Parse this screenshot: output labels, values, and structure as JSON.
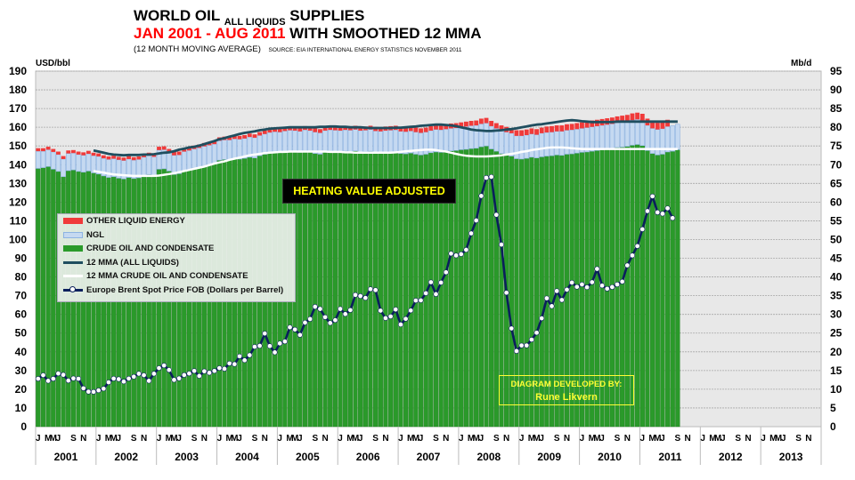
{
  "title": {
    "line1_main": "WORLD OIL",
    "line1_sub": "ALL LIQUIDS",
    "line1_end": "SUPPLIES",
    "line2_red": "JAN 2001 - AUG 2011",
    "line2_black": "WITH SMOOTHED 12 MMA",
    "line3": "(12 MONTH MOVING AVERAGE)",
    "line3_source": "SOURCE: EIA INTERNATIONAL ENERGY STATISTICS NOVEMBER 2011"
  },
  "annotations": {
    "heating": "HEATING VALUE ADJUSTED",
    "credit_line1": "DIAGRAM DEVELOPED BY:",
    "credit_line2": "Rune Likvern"
  },
  "colors": {
    "other_liquids": "#f03a3a",
    "ngl": "#c5d9f1",
    "ngl_border": "#8db3e2",
    "crude": "#2a9a2a",
    "mma_all": "#1f4e5f",
    "mma_crude": "#ffffff",
    "brent_line": "#0a1f5c",
    "plot_bg": "#e8e8e8"
  },
  "chart_data": {
    "type": "bar",
    "title": "WORLD OIL ALL LIQUIDS SUPPLIES JAN 2001 - AUG 2011 WITH SMOOTHED 12 MMA",
    "ylabel_left": "USD/bbl",
    "ylabel_right": "Mb/d",
    "ylim_left": [
      0,
      190
    ],
    "ylim_right": [
      0,
      95
    ],
    "yticks_left": [
      0,
      10,
      20,
      30,
      40,
      50,
      60,
      70,
      80,
      90,
      100,
      110,
      120,
      130,
      140,
      150,
      160,
      170,
      180,
      190
    ],
    "yticks_right": [
      0,
      5,
      10,
      15,
      20,
      25,
      30,
      35,
      40,
      45,
      50,
      55,
      60,
      65,
      70,
      75,
      80,
      85,
      90,
      95
    ],
    "grid": true,
    "legend_position": "middle-left",
    "x_years": [
      "2001",
      "2002",
      "2003",
      "2004",
      "2005",
      "2006",
      "2007",
      "2008",
      "2009",
      "2010",
      "2011",
      "2012",
      "2013"
    ],
    "x_month_labels": [
      "J",
      "",
      "M",
      "M",
      "J",
      "",
      "",
      "S",
      "",
      "N",
      "",
      ""
    ],
    "x_start": "2001-01",
    "x_end_axis": "2013-12",
    "legend": [
      "OTHER LIQUID ENERGY",
      "NGL",
      "CRUDE OIL AND CONDENSATE",
      "12 MMA (ALL LIQUIDS)",
      "12 MMA CRUDE OIL AND CONDENSATE",
      "Europe Brent Spot Price FOB (Dollars per Barrel)"
    ],
    "series": [
      {
        "name": "CRUDE OIL AND CONDENSATE",
        "axis": "right",
        "type": "stacked-bar",
        "values": [
          69.0,
          69.2,
          69.5,
          68.8,
          68.2,
          66.8,
          68.4,
          68.6,
          68.2,
          68.0,
          68.3,
          67.8,
          67.5,
          67.0,
          66.6,
          66.8,
          66.4,
          66.2,
          66.6,
          66.3,
          66.5,
          67.1,
          67.4,
          67.0,
          68.8,
          68.9,
          68.3,
          67.4,
          67.6,
          68.4,
          68.8,
          69.1,
          69.3,
          69.7,
          70.0,
          70.2,
          71.2,
          71.4,
          71.3,
          71.6,
          71.5,
          71.7,
          72.0,
          71.8,
          72.4,
          72.8,
          73.1,
          73.3,
          73.2,
          73.4,
          73.6,
          73.5,
          73.3,
          73.7,
          73.5,
          73.0,
          72.8,
          73.4,
          73.6,
          73.5,
          73.4,
          73.6,
          73.5,
          73.7,
          73.4,
          73.5,
          73.6,
          73.2,
          73.1,
          73.3,
          73.4,
          73.5,
          73.0,
          72.9,
          73.1,
          72.8,
          72.6,
          72.8,
          73.2,
          73.4,
          73.3,
          73.5,
          73.7,
          73.8,
          74.0,
          74.1,
          74.3,
          74.4,
          74.8,
          75.0,
          74.2,
          73.6,
          73.0,
          72.6,
          72.3,
          71.6,
          71.5,
          71.7,
          72.0,
          71.8,
          72.1,
          72.3,
          72.4,
          72.6,
          72.5,
          72.8,
          72.9,
          73.1,
          73.3,
          73.4,
          73.6,
          73.8,
          74.0,
          74.1,
          74.3,
          74.6,
          74.7,
          74.9,
          75.2,
          75.4,
          75.1,
          73.8,
          73.0,
          72.6,
          72.8,
          73.4,
          73.6,
          74.0
        ]
      },
      {
        "name": "NGL",
        "axis": "right",
        "type": "stacked-bar",
        "values": [
          4.6,
          4.4,
          4.5,
          4.6,
          4.5,
          4.7,
          4.6,
          4.5,
          4.5,
          4.5,
          4.6,
          4.6,
          4.7,
          4.7,
          4.8,
          4.8,
          4.9,
          4.9,
          4.9,
          4.9,
          4.9,
          4.9,
          5.0,
          5.1,
          5.1,
          5.1,
          5.0,
          5.1,
          5.0,
          5.1,
          5.0,
          5.1,
          5.2,
          5.2,
          5.2,
          5.3,
          5.2,
          5.2,
          5.3,
          5.3,
          5.3,
          5.3,
          5.4,
          5.4,
          5.4,
          5.4,
          5.5,
          5.5,
          5.5,
          5.6,
          5.6,
          5.6,
          5.6,
          5.6,
          5.6,
          5.7,
          5.7,
          5.7,
          5.7,
          5.7,
          5.7,
          5.7,
          5.7,
          5.7,
          5.7,
          5.7,
          5.8,
          5.8,
          5.8,
          5.8,
          5.8,
          5.8,
          5.9,
          5.9,
          5.9,
          5.9,
          5.9,
          5.9,
          5.9,
          6.0,
          6.0,
          6.0,
          6.0,
          6.0,
          6.0,
          6.1,
          6.1,
          6.1,
          6.1,
          6.1,
          6.1,
          6.1,
          6.1,
          6.1,
          6.1,
          6.1,
          6.2,
          6.2,
          6.2,
          6.2,
          6.3,
          6.3,
          6.3,
          6.3,
          6.4,
          6.4,
          6.4,
          6.4,
          6.4,
          6.5,
          6.5,
          6.5,
          6.5,
          6.6,
          6.6,
          6.6,
          6.6,
          6.6,
          6.7,
          6.7,
          6.7,
          6.7,
          6.7,
          6.8,
          6.8,
          6.8,
          6.8,
          6.8
        ]
      },
      {
        "name": "OTHER LIQUID ENERGY",
        "axis": "right",
        "type": "stacked-bar",
        "values": [
          0.8,
          0.8,
          0.8,
          0.8,
          0.8,
          0.8,
          0.8,
          0.8,
          0.8,
          0.8,
          0.8,
          0.8,
          0.8,
          0.8,
          0.8,
          0.8,
          0.8,
          0.8,
          0.8,
          0.8,
          0.8,
          0.8,
          0.8,
          0.8,
          0.9,
          0.9,
          0.9,
          0.9,
          0.9,
          0.9,
          0.9,
          0.9,
          0.9,
          0.9,
          0.9,
          0.9,
          0.9,
          0.9,
          0.9,
          0.9,
          0.9,
          0.9,
          0.9,
          0.9,
          0.9,
          0.9,
          0.9,
          0.9,
          1.0,
          1.0,
          1.0,
          1.0,
          1.0,
          1.0,
          1.0,
          1.0,
          1.0,
          1.0,
          1.0,
          1.0,
          1.0,
          1.0,
          1.0,
          1.0,
          1.0,
          1.0,
          1.0,
          1.1,
          1.1,
          1.1,
          1.1,
          1.1,
          1.1,
          1.1,
          1.1,
          1.2,
          1.2,
          1.2,
          1.2,
          1.2,
          1.2,
          1.3,
          1.3,
          1.3,
          1.3,
          1.3,
          1.3,
          1.3,
          1.4,
          1.4,
          1.4,
          1.4,
          1.4,
          1.4,
          1.4,
          1.5,
          1.5,
          1.5,
          1.5,
          1.5,
          1.5,
          1.6,
          1.6,
          1.6,
          1.6,
          1.6,
          1.6,
          1.6,
          1.6,
          1.7,
          1.7,
          1.7,
          1.7,
          1.7,
          1.7,
          1.7,
          1.8,
          1.8,
          1.8,
          1.8,
          1.8,
          1.8,
          1.8,
          1.8,
          1.8,
          1.8
        ]
      },
      {
        "name": "Europe Brent Spot Price FOB (Dollars per Barrel)",
        "axis": "left",
        "type": "line-markers",
        "values": [
          25.6,
          27.5,
          24.5,
          25.6,
          28.4,
          27.7,
          24.6,
          25.8,
          25.6,
          20.5,
          18.7,
          18.6,
          19.4,
          20.3,
          23.7,
          25.7,
          25.4,
          24.1,
          25.7,
          26.7,
          28.3,
          27.5,
          24.5,
          28.3,
          31.3,
          32.7,
          30.3,
          25.0,
          25.8,
          27.6,
          28.4,
          29.8,
          27.1,
          29.6,
          28.8,
          29.8,
          31.3,
          30.9,
          33.8,
          33.4,
          37.6,
          35.5,
          38.2,
          42.7,
          43.2,
          49.8,
          43.1,
          39.7,
          44.5,
          45.5,
          53.1,
          51.9,
          49.0,
          55.6,
          57.5,
          64.1,
          62.9,
          58.5,
          55.4,
          56.9,
          62.9,
          60.2,
          62.3,
          70.4,
          69.8,
          68.8,
          73.5,
          73.0,
          62.0,
          58.0,
          58.9,
          62.6,
          54.6,
          57.6,
          62.1,
          67.4,
          67.5,
          71.3,
          77.2,
          70.8,
          77.0,
          82.5,
          92.5,
          91.5,
          92.2,
          94.5,
          103.3,
          110.2,
          123.3,
          133.0,
          133.5,
          113.2,
          97.3,
          71.6,
          52.5,
          40.4,
          43.4,
          43.4,
          46.5,
          50.2,
          57.9,
          68.6,
          64.4,
          72.5,
          67.7,
          73.2,
          77.0,
          74.7,
          76.0,
          74.5,
          77.2,
          84.3,
          75.4,
          73.7,
          74.6,
          76.0,
          77.5,
          86.2,
          91.5,
          96.5,
          105.5,
          115.2,
          123.1,
          114.5,
          113.8,
          116.7,
          111.5
        ]
      },
      {
        "name": "12 MMA (ALL LIQUIDS)",
        "axis": "right",
        "type": "line",
        "start_index": 11,
        "values": [
          73.8,
          73.5,
          73.2,
          72.9,
          72.7,
          72.6,
          72.5,
          72.6,
          72.6,
          72.6,
          72.7,
          72.7,
          72.8,
          73.0,
          73.2,
          73.3,
          73.6,
          74.0,
          74.3,
          74.6,
          74.8,
          75.1,
          75.5,
          75.9,
          76.3,
          76.8,
          77.1,
          77.5,
          77.8,
          78.2,
          78.5,
          78.7,
          78.9,
          79.2,
          79.4,
          79.6,
          79.7,
          79.8,
          79.9,
          80.0,
          80.0,
          80.0,
          80.0,
          80.0,
          80.0,
          80.1,
          80.1,
          80.2,
          80.2,
          80.1,
          80.1,
          80.0,
          80.0,
          80.0,
          79.9,
          79.8,
          79.8,
          79.8,
          79.8,
          79.8,
          79.9,
          79.9,
          80.0,
          80.1,
          80.2,
          80.4,
          80.5,
          80.6,
          80.7,
          80.7,
          80.6,
          80.5,
          80.3,
          80.0,
          79.7,
          79.4,
          79.2,
          79.1,
          79.0,
          79.0,
          79.1,
          79.2,
          79.4,
          79.5,
          79.7,
          80.0,
          80.2,
          80.5,
          80.7,
          80.8,
          81.0,
          81.2,
          81.4,
          81.6,
          81.8,
          81.9,
          81.8,
          81.6,
          81.5,
          81.4,
          81.4,
          81.4,
          81.4,
          81.4,
          81.5,
          81.5,
          81.5,
          81.5,
          81.5,
          81.5,
          81.5,
          81.5,
          81.5,
          81.5,
          81.5,
          81.5,
          81.5
        ]
      },
      {
        "name": "12 MMA CRUDE OIL AND CONDENSATE",
        "axis": "right",
        "type": "line",
        "start_index": 11,
        "values": [
          68.3,
          68.1,
          67.9,
          67.6,
          67.4,
          67.3,
          67.2,
          67.1,
          67.0,
          67.0,
          67.0,
          67.0,
          67.0,
          67.1,
          67.3,
          67.5,
          67.7,
          68.0,
          68.3,
          68.6,
          68.9,
          69.2,
          69.5,
          69.9,
          70.3,
          70.6,
          70.9,
          71.3,
          71.6,
          71.9,
          72.2,
          72.5,
          72.7,
          72.9,
          73.1,
          73.2,
          73.3,
          73.4,
          73.4,
          73.5,
          73.5,
          73.5,
          73.5,
          73.5,
          73.5,
          73.5,
          73.5,
          73.4,
          73.4,
          73.4,
          73.3,
          73.3,
          73.2,
          73.2,
          73.2,
          73.2,
          73.2,
          73.2,
          73.2,
          73.2,
          73.3,
          73.4,
          73.6,
          73.7,
          73.8,
          73.9,
          74.0,
          74.0,
          73.9,
          73.7,
          73.5,
          73.2,
          72.9,
          72.6,
          72.4,
          72.3,
          72.2,
          72.2,
          72.2,
          72.3,
          72.4,
          72.5,
          72.7,
          72.9,
          73.1,
          73.4,
          73.6,
          73.9,
          74.1,
          74.3,
          74.5,
          74.6,
          74.6,
          74.6,
          74.5,
          74.4,
          74.3,
          74.2,
          74.2,
          74.2,
          74.2,
          74.2,
          74.2,
          74.2,
          74.2,
          74.2,
          74.2,
          74.2,
          74.2,
          74.2,
          74.2,
          74.2,
          74.2,
          74.2,
          74.2,
          74.2,
          74.2
        ]
      }
    ]
  }
}
